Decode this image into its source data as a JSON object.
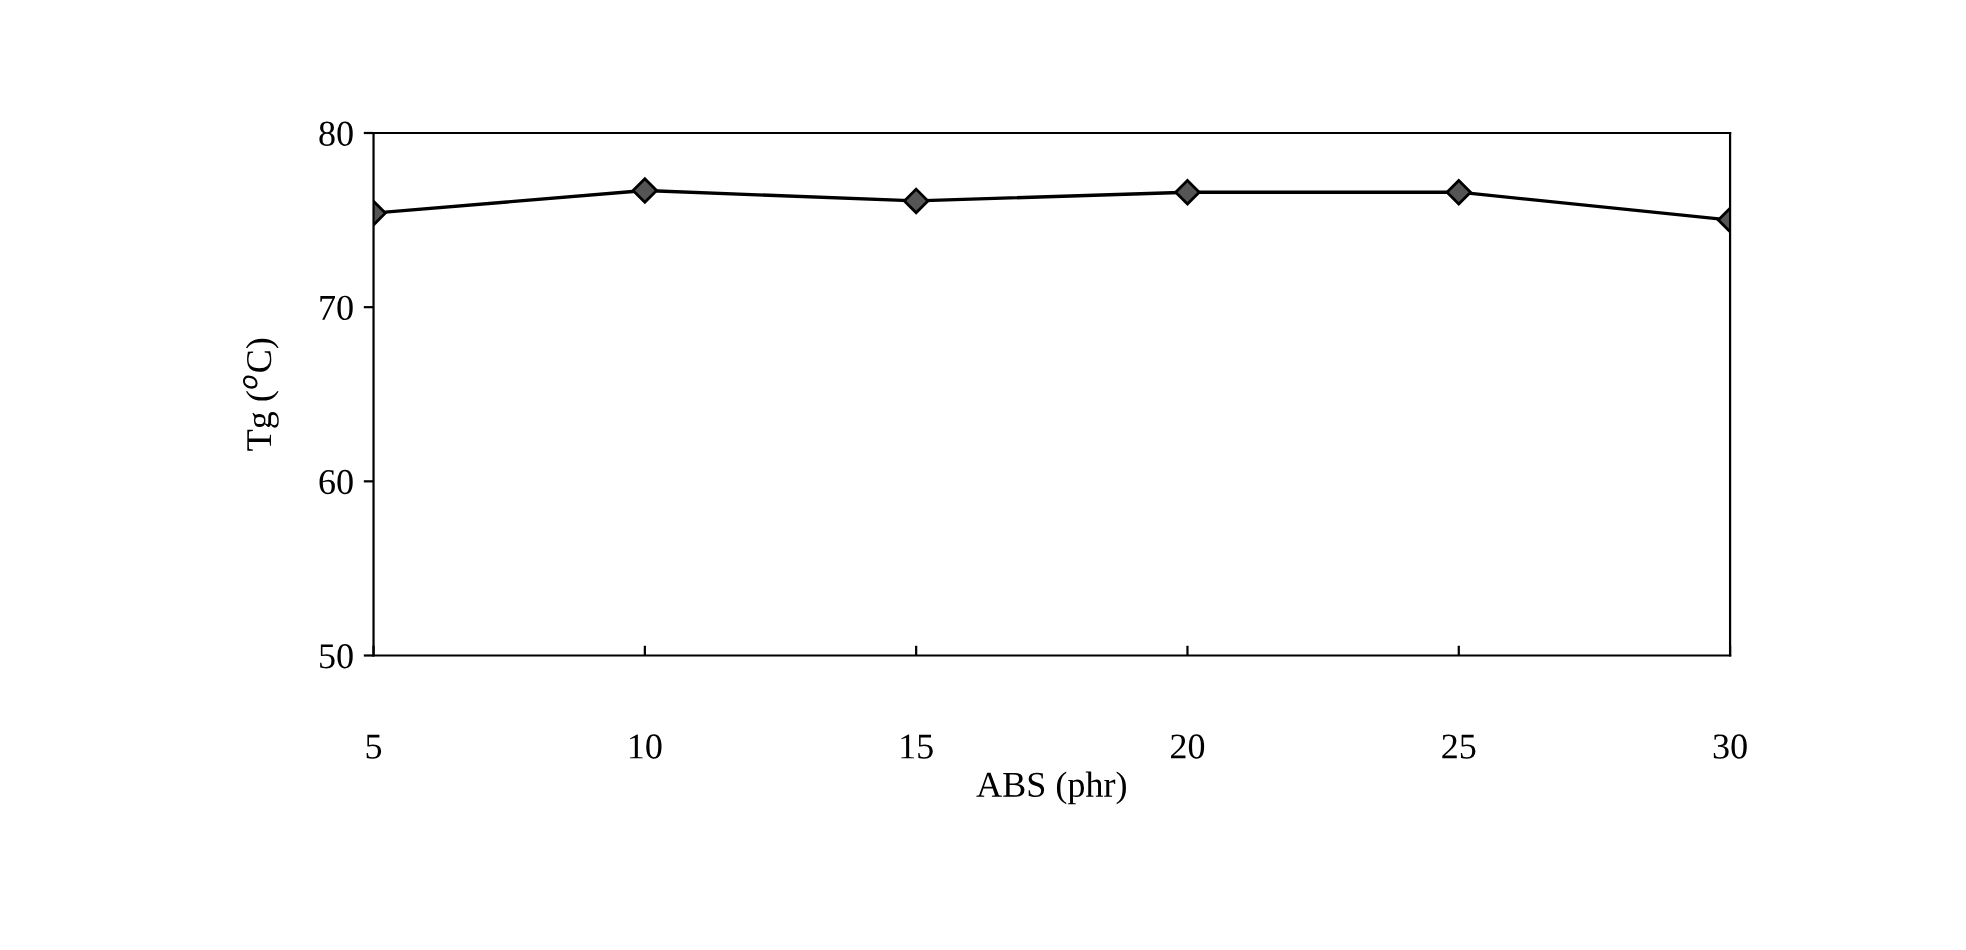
{
  "chart_data": {
    "type": "line",
    "xlabel": "ABS (phr)",
    "ylabel": "Tg ($^{o}$C)",
    "x": [
      5,
      10,
      15,
      20,
      25,
      30
    ],
    "series": [
      {
        "color": "#000000",
        "values": [
          75.4,
          76.7,
          76.1,
          76.6,
          76.6,
          75.0
        ]
      }
    ],
    "xlim": [
      5,
      30
    ],
    "xticks": [
      5,
      10,
      15,
      20,
      25,
      30
    ],
    "ylim": [
      50,
      80
    ],
    "yticks": [
      50,
      60,
      70,
      80
    ],
    "marker": "diamond",
    "line_style": "solid",
    "grid": false,
    "legend": false
  }
}
